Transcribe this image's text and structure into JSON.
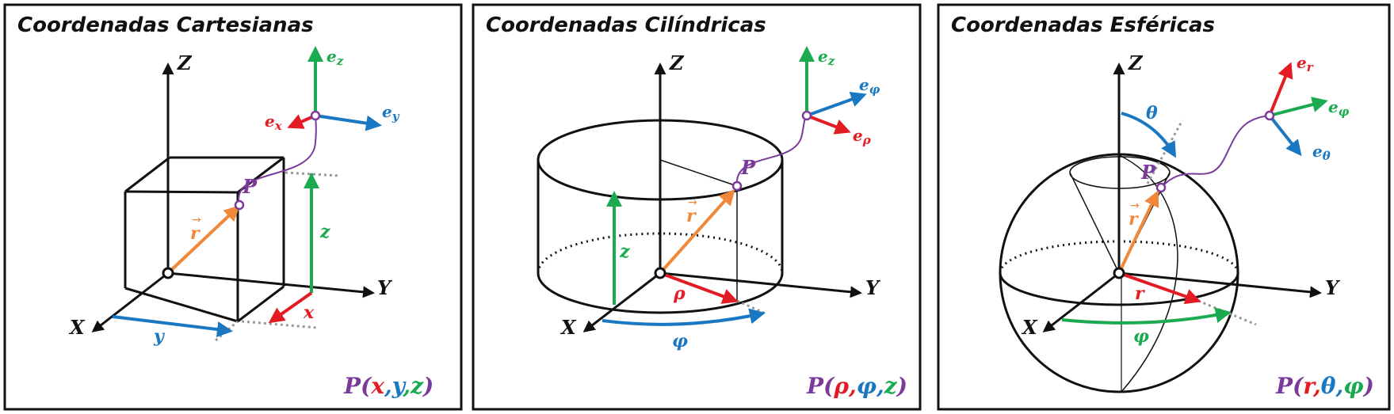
{
  "colors": {
    "x": "#e31b23",
    "y": "#1a78c2",
    "z": "#1aaa4f",
    "r": "#f0883a",
    "point": "#7a3a9a",
    "outline": "#111111"
  },
  "panels": [
    {
      "title": "Coordenadas Cartesianas",
      "axes": {
        "x": "X",
        "y": "Y",
        "z": "Z"
      },
      "point_label": "P",
      "vector_label": "r",
      "components": {
        "x": "x",
        "y": "y",
        "z": "z"
      },
      "units": {
        "x": {
          "base": "e",
          "sub": "x"
        },
        "y": {
          "base": "e",
          "sub": "y"
        },
        "z": {
          "base": "e",
          "sub": "z"
        }
      },
      "formula": {
        "p": "P",
        "open": "(",
        "a": "x",
        "sep1": ",",
        "b": "y",
        "sep2": ",",
        "c": "z",
        "close": ")"
      }
    },
    {
      "title": "Coordenadas Cilíndricas",
      "axes": {
        "x": "X",
        "y": "Y",
        "z": "Z"
      },
      "point_label": "P",
      "vector_label": "r",
      "components": {
        "rho": "ρ",
        "phi": "φ",
        "z": "z"
      },
      "units": {
        "z": {
          "base": "e",
          "sub": "z"
        },
        "phi": {
          "base": "e",
          "sub": "φ"
        },
        "rho": {
          "base": "e",
          "sub": "ρ"
        }
      },
      "formula": {
        "p": "P",
        "open": "(",
        "a": "ρ",
        "sep1": ",",
        "b": "φ",
        "sep2": ",",
        "c": "z",
        "close": ")"
      }
    },
    {
      "title": "Coordenadas Esféricas",
      "axes": {
        "x": "X",
        "y": "Y",
        "z": "Z"
      },
      "point_label": "P",
      "vector_label": "r",
      "components": {
        "r": "r",
        "theta": "θ",
        "phi": "φ"
      },
      "units": {
        "r": {
          "base": "e",
          "sub": "r"
        },
        "phi": {
          "base": "e",
          "sub": "φ"
        },
        "theta": {
          "base": "e",
          "sub": "θ"
        }
      },
      "formula": {
        "p": "P",
        "open": "(",
        "a": "r",
        "sep1": ",",
        "b": "θ",
        "sep2": ",",
        "c": "φ",
        "close": ")"
      }
    }
  ]
}
